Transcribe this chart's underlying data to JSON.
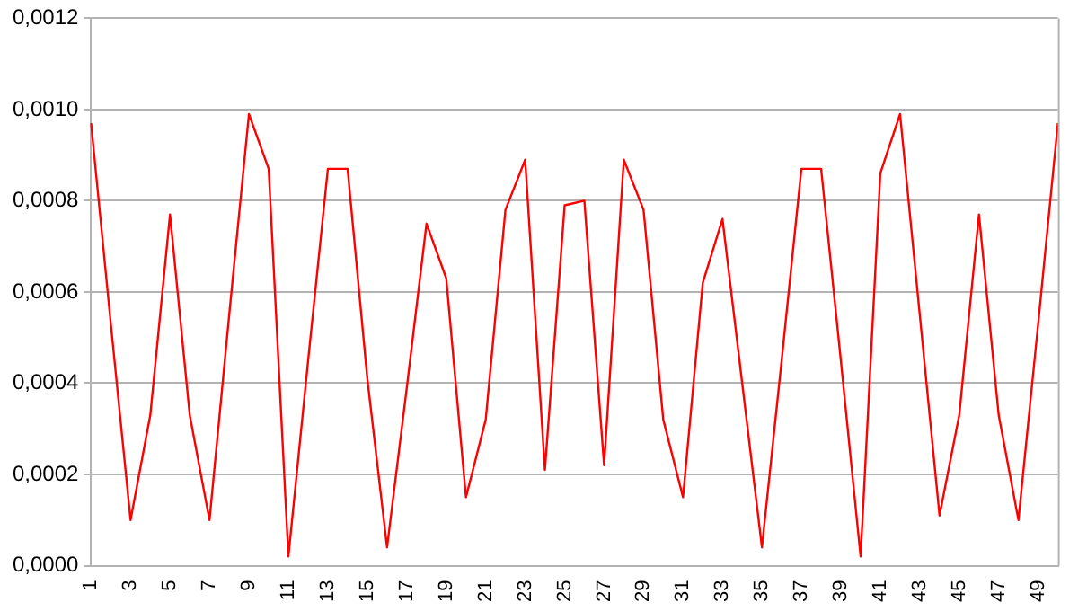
{
  "chart_data": {
    "type": "line",
    "categories": [
      "1",
      null,
      "3",
      null,
      "5",
      null,
      "7",
      null,
      "9",
      null,
      "11",
      null,
      "13",
      null,
      "15",
      null,
      "17",
      null,
      "19",
      null,
      "21",
      null,
      "23",
      null,
      "25",
      null,
      "27",
      null,
      "29",
      null,
      "31",
      null,
      "33",
      null,
      "35",
      null,
      "37",
      null,
      "39",
      null,
      "41",
      null,
      "43",
      null,
      "45",
      null,
      "47",
      null,
      "49",
      null
    ],
    "series": [
      {
        "color": "#ff0000",
        "values": [
          0.00097,
          0.00053,
          0.0001,
          0.00033,
          0.00077,
          0.00033,
          0.0001,
          0.00055,
          0.00099,
          0.00087,
          2e-05,
          0.00045,
          0.00087,
          0.00087,
          0.00041,
          4e-05,
          0.00039,
          0.00075,
          0.00063,
          0.00015,
          0.00032,
          0.00078,
          0.00089,
          0.00021,
          0.00079,
          0.0008,
          0.00022,
          0.00089,
          0.00078,
          0.00032,
          0.00015,
          0.00062,
          0.00076,
          0.0004,
          4e-05,
          0.00045,
          0.00087,
          0.00087,
          0.00045,
          2e-05,
          0.00086,
          0.00099,
          0.00055,
          0.00011,
          0.00033,
          0.00077,
          0.00033,
          0.0001,
          0.00053,
          0.00097
        ]
      }
    ],
    "ylim": [
      0,
      0.0012
    ],
    "yticks": [
      {
        "value": 0,
        "label": "0,0000"
      },
      {
        "value": 0.0002,
        "label": "0,0002"
      },
      {
        "value": 0.0004,
        "label": "0,0004"
      },
      {
        "value": 0.0006,
        "label": "0,0006"
      },
      {
        "value": 0.0008,
        "label": "0,0008"
      },
      {
        "value": 0.001,
        "label": "0,0010"
      },
      {
        "value": 0.0012,
        "label": "0,0012"
      }
    ],
    "grid": "y",
    "legend": false,
    "marker": "none",
    "line_style": "solid"
  }
}
